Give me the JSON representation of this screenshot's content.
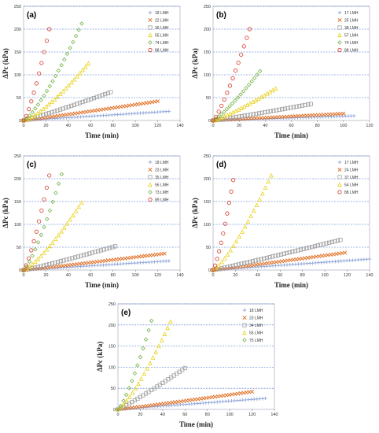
{
  "chart_data": [
    {
      "type": "scatter",
      "panel_label": "(a)",
      "xlabel": "Time (min)",
      "ylabel": "ΔPc (kPa)",
      "xlim": [
        0,
        140
      ],
      "ylim": [
        0,
        250
      ],
      "xticks": [
        0,
        20,
        40,
        60,
        80,
        100,
        120,
        140
      ],
      "yticks": [
        0,
        50,
        100,
        150,
        200,
        250
      ],
      "grid": "horizontal",
      "legend_position": "top-right",
      "series": [
        {
          "name": "18 LMH",
          "marker": "plus",
          "color": "#8fa5d8",
          "x_max": 130,
          "y_max": 20,
          "exponent": 1.0
        },
        {
          "name": "22 LMH",
          "marker": "cross",
          "color": "#e06a1c",
          "x_max": 120,
          "y_max": 42,
          "exponent": 1.05
        },
        {
          "name": "36 LMH",
          "marker": "square",
          "color": "#a0a0a0",
          "x_max": 78,
          "y_max": 62,
          "exponent": 1.1
        },
        {
          "name": "55 LMH",
          "marker": "triangle",
          "color": "#e8d21a",
          "x_max": 58,
          "y_max": 125,
          "exponent": 1.35
        },
        {
          "name": "74 LMH",
          "marker": "diamond",
          "color": "#74b34a",
          "x_max": 52,
          "y_max": 212,
          "exponent": 1.3
        },
        {
          "name": "88 LMH",
          "marker": "circle",
          "color": "#d63a2a",
          "x_max": 23,
          "y_max": 200,
          "exponent": 1.3
        }
      ]
    },
    {
      "type": "scatter",
      "panel_label": "(b)",
      "xlabel": "Time (min)",
      "ylabel": "ΔPc (kPa)",
      "xlim": [
        0,
        120
      ],
      "ylim": [
        0,
        250
      ],
      "xticks": [
        0,
        20,
        40,
        60,
        80,
        100,
        120
      ],
      "yticks": [
        0,
        50,
        100,
        150,
        200,
        250
      ],
      "grid": "horizontal",
      "legend_position": "top-right",
      "series": [
        {
          "name": "17 LMH",
          "marker": "plus",
          "color": "#8fa5d8",
          "x_max": 108,
          "y_max": 10,
          "exponent": 1.0
        },
        {
          "name": "25 LMH",
          "marker": "cross",
          "color": "#e06a1c",
          "x_max": 100,
          "y_max": 15,
          "exponent": 1.0
        },
        {
          "name": "38 LMH",
          "marker": "square",
          "color": "#a0a0a0",
          "x_max": 75,
          "y_max": 36,
          "exponent": 1.1
        },
        {
          "name": "57 LMH",
          "marker": "triangle",
          "color": "#e8d21a",
          "x_max": 48,
          "y_max": 70,
          "exponent": 1.2
        },
        {
          "name": "74 LMH",
          "marker": "diamond",
          "color": "#74b34a",
          "x_max": 36,
          "y_max": 108,
          "exponent": 1.2
        },
        {
          "name": "88 LMH",
          "marker": "circle",
          "color": "#d63a2a",
          "x_max": 28,
          "y_max": 200,
          "exponent": 1.25
        }
      ]
    },
    {
      "type": "scatter",
      "panel_label": "(c)",
      "xlabel": "Time (min)",
      "ylabel": "ΔPc (kPa)",
      "xlim": [
        0,
        140
      ],
      "ylim": [
        0,
        250
      ],
      "xticks": [
        0,
        20,
        40,
        60,
        80,
        100,
        120,
        140
      ],
      "yticks": [
        0,
        50,
        100,
        150,
        200,
        250
      ],
      "grid": "horizontal",
      "legend_position": "top-right",
      "series": [
        {
          "name": "18 LMH",
          "marker": "plus",
          "color": "#8fa5d8",
          "x_max": 130,
          "y_max": 20,
          "exponent": 1.0
        },
        {
          "name": "23 LMH",
          "marker": "cross",
          "color": "#e06a1c",
          "x_max": 126,
          "y_max": 36,
          "exponent": 1.05
        },
        {
          "name": "35 LMH",
          "marker": "square",
          "color": "#a0a0a0",
          "x_max": 82,
          "y_max": 52,
          "exponent": 1.1
        },
        {
          "name": "56 LMH",
          "marker": "triangle",
          "color": "#e8d21a",
          "x_max": 52,
          "y_max": 148,
          "exponent": 1.3
        },
        {
          "name": "73 LMH",
          "marker": "diamond",
          "color": "#74b34a",
          "x_max": 34,
          "y_max": 210,
          "exponent": 1.3
        },
        {
          "name": "89 LMH",
          "marker": "circle",
          "color": "#d63a2a",
          "x_max": 23,
          "y_max": 207,
          "exponent": 1.3
        }
      ]
    },
    {
      "type": "scatter",
      "panel_label": "(d)",
      "xlabel": "Time (min)",
      "ylabel": "ΔPc (kPa)",
      "xlim": [
        0,
        140
      ],
      "ylim": [
        0,
        250
      ],
      "xticks": [
        0,
        20,
        40,
        60,
        80,
        100,
        120,
        140
      ],
      "yticks": [
        0,
        50,
        100,
        150,
        200,
        250
      ],
      "grid": "horizontal",
      "legend_position": "top-right",
      "series": [
        {
          "name": "17 LMH",
          "marker": "plus",
          "color": "#8fa5d8",
          "x_max": 140,
          "y_max": 24,
          "exponent": 1.0
        },
        {
          "name": "24 LMH",
          "marker": "cross",
          "color": "#e06a1c",
          "x_max": 118,
          "y_max": 38,
          "exponent": 1.05
        },
        {
          "name": "37 LMH",
          "marker": "square",
          "color": "#a0a0a0",
          "x_max": 114,
          "y_max": 66,
          "exponent": 1.05
        },
        {
          "name": "54 LMH",
          "marker": "triangle",
          "color": "#e8d21a",
          "x_max": 52,
          "y_max": 207,
          "exponent": 1.3
        },
        {
          "name": "88 LMH",
          "marker": "circle",
          "color": "#d63a2a",
          "x_max": 18,
          "y_max": 197,
          "exponent": 1.3
        }
      ]
    },
    {
      "type": "scatter",
      "panel_label": "(e)",
      "xlabel": "Time (min)",
      "ylabel": "ΔPc (kPa)",
      "xlim": [
        0,
        140
      ],
      "ylim": [
        0,
        250
      ],
      "xticks": [
        0,
        20,
        40,
        60,
        80,
        100,
        120,
        140
      ],
      "yticks": [
        0,
        50,
        100,
        150,
        200,
        250
      ],
      "grid": "horizontal",
      "legend_position": "top-right",
      "series": [
        {
          "name": "18 LMH",
          "marker": "plus",
          "color": "#8fa5d8",
          "x_max": 132,
          "y_max": 26,
          "exponent": 1.0
        },
        {
          "name": "23 LMH",
          "marker": "cross",
          "color": "#e06a1c",
          "x_max": 120,
          "y_max": 42,
          "exponent": 1.05
        },
        {
          "name": "34 LMH",
          "marker": "square",
          "color": "#a0a0a0",
          "x_max": 60,
          "y_max": 98,
          "exponent": 1.1
        },
        {
          "name": "55 LMH",
          "marker": "triangle",
          "color": "#e8d21a",
          "x_max": 47,
          "y_max": 208,
          "exponent": 1.3
        },
        {
          "name": "75 LMH",
          "marker": "diamond",
          "color": "#74b34a",
          "x_max": 30,
          "y_max": 210,
          "exponent": 1.3
        }
      ]
    }
  ]
}
